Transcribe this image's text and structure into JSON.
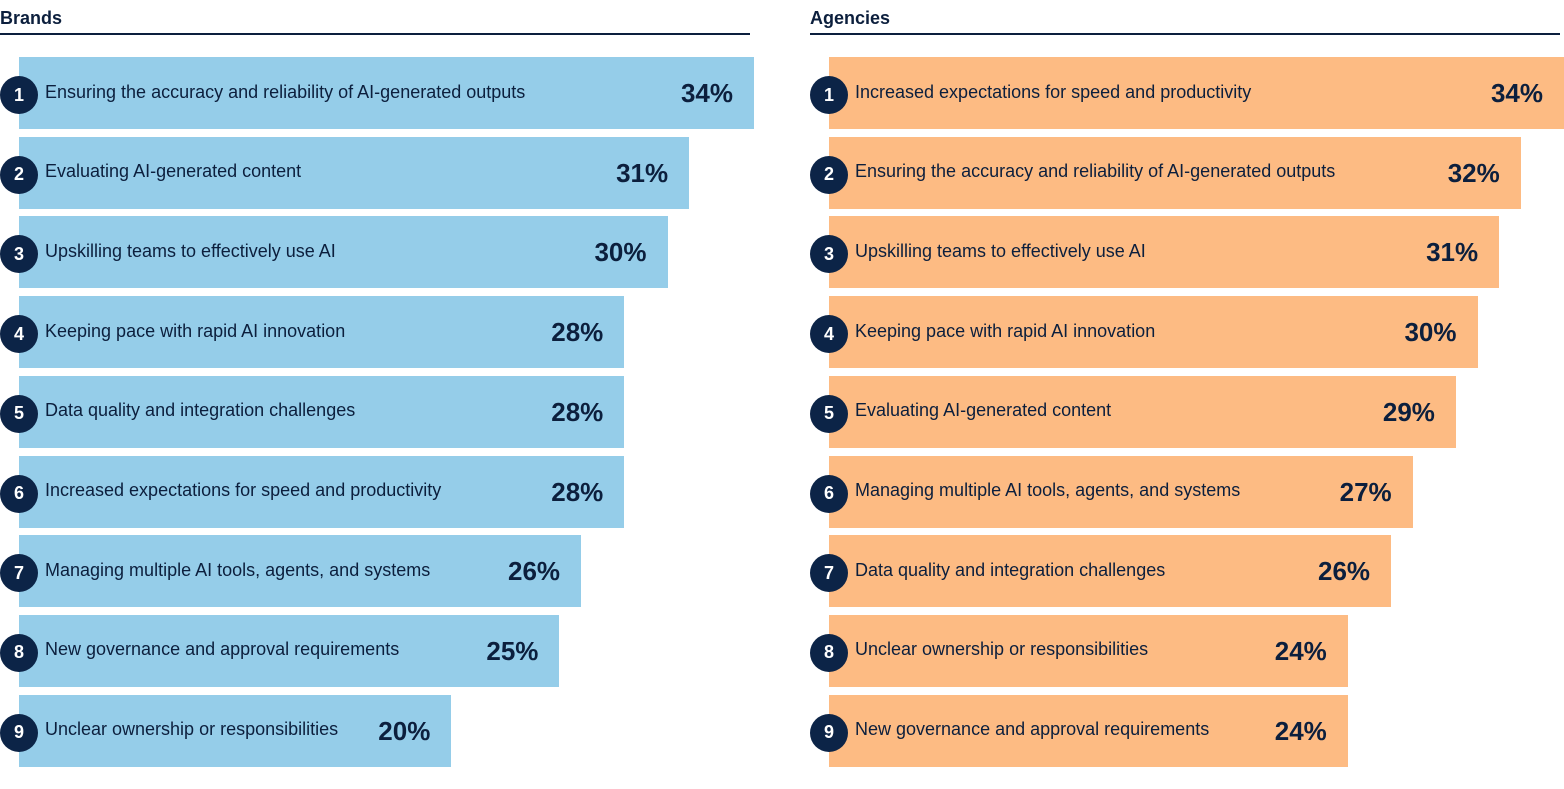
{
  "chart_data": [
    {
      "type": "bar",
      "title": "Brands",
      "color": "#95cde9",
      "value_suffix": "%",
      "xlim": [
        0,
        34
      ],
      "items": [
        {
          "rank": "1",
          "label": "Ensuring the accuracy and reliability of AI-generated outputs",
          "value": 34
        },
        {
          "rank": "2",
          "label": "Evaluating AI-generated content",
          "value": 31
        },
        {
          "rank": "3",
          "label": "Upskilling teams to effectively use AI",
          "value": 30
        },
        {
          "rank": "4",
          "label": "Keeping pace with rapid AI innovation",
          "value": 28
        },
        {
          "rank": "5",
          "label": "Data quality and integration challenges",
          "value": 28
        },
        {
          "rank": "6",
          "label": "Increased expectations for speed and productivity",
          "value": 28
        },
        {
          "rank": "7",
          "label": "Managing multiple AI tools, agents, and systems",
          "value": 26
        },
        {
          "rank": "8",
          "label": "New governance and approval requirements",
          "value": 25
        },
        {
          "rank": "9",
          "label": "Unclear ownership or responsibilities",
          "value": 20
        }
      ]
    },
    {
      "type": "bar",
      "title": "Agencies",
      "color": "#fdbb83",
      "value_suffix": "%",
      "xlim": [
        0,
        34
      ],
      "items": [
        {
          "rank": "1",
          "label": "Increased expectations for speed and productivity",
          "value": 34
        },
        {
          "rank": "2",
          "label": "Ensuring the accuracy and reliability of AI-generated outputs",
          "value": 32
        },
        {
          "rank": "3",
          "label": "Upskilling teams to effectively use AI",
          "value": 31
        },
        {
          "rank": "4",
          "label": "Keeping pace with rapid AI innovation",
          "value": 30
        },
        {
          "rank": "5",
          "label": "Evaluating AI-generated content",
          "value": 29
        },
        {
          "rank": "6",
          "label": "Managing multiple AI tools, agents, and systems",
          "value": 27
        },
        {
          "rank": "7",
          "label": "Data quality and integration challenges",
          "value": 26
        },
        {
          "rank": "8",
          "label": "Unclear ownership or responsibilities",
          "value": 24
        },
        {
          "rank": "9",
          "label": "New governance and approval requirements",
          "value": 24
        }
      ]
    }
  ]
}
